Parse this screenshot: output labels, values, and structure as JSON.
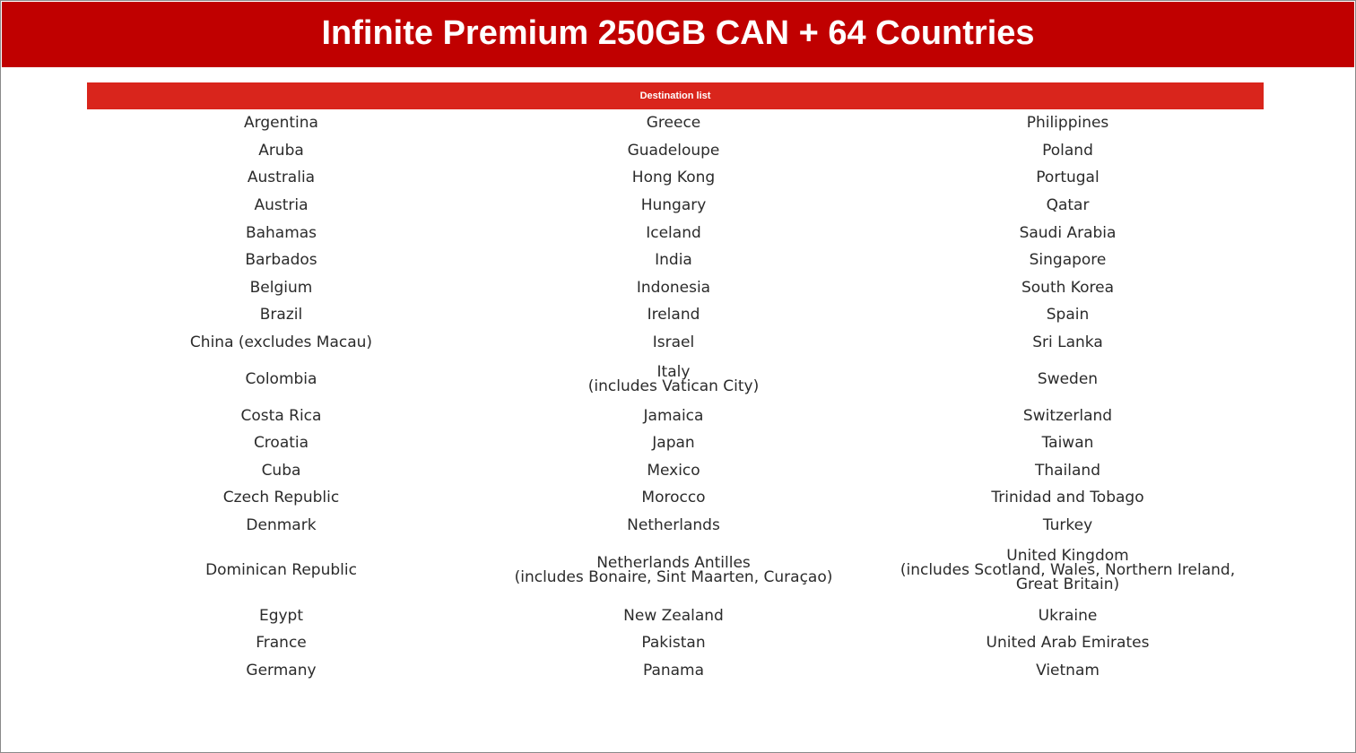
{
  "header": {
    "title": "Infinite Premium 250GB CAN + 64 Countries"
  },
  "list": {
    "title": "Destination list"
  },
  "columns": [
    [
      "Argentina",
      "Aruba",
      "Australia",
      "Austria",
      "Bahamas",
      "Barbados",
      "Belgium",
      "Brazil",
      "China (excludes Macau)",
      "Colombia",
      "Costa Rica",
      "Croatia",
      "Cuba",
      "Czech Republic",
      "Denmark",
      "Dominican Republic",
      "Egypt",
      "France",
      "Germany"
    ],
    [
      "Greece",
      "Guadeloupe",
      "Hong Kong",
      "Hungary",
      "Iceland",
      "India",
      "Indonesia",
      "Ireland",
      "Israel",
      "Italy\n(includes Vatican City)",
      "Jamaica",
      "Japan",
      "Mexico",
      "Morocco",
      "Netherlands",
      "Netherlands Antilles\n(includes Bonaire, Sint Maarten, Curaçao)",
      "New Zealand",
      "Pakistan",
      "Panama"
    ],
    [
      "Philippines",
      "Poland",
      "Portugal",
      "Qatar",
      "Saudi Arabia",
      "Singapore",
      "South Korea",
      "Spain",
      "Sri Lanka",
      "Sweden",
      "Switzerland",
      "Taiwan",
      "Thailand",
      "Trinidad and Tobago",
      "Turkey",
      "United Kingdom\n(includes Scotland, Wales, Northern Ireland,\nGreat Britain)",
      "Ukraine",
      "United Arab Emirates",
      "Vietnam"
    ]
  ],
  "colors": {
    "header_bg": "#c00000",
    "list_bar_bg": "#d9251c",
    "text": "#2b2b2b"
  }
}
